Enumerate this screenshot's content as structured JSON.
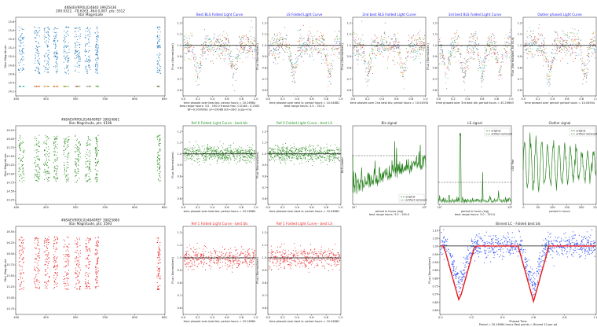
{
  "colors": {
    "blue": "#1f77b4",
    "green": "#2a8a1e",
    "red": "#e8191b",
    "title_blue": "#1a1aff",
    "title_green": "#229922",
    "title_red": "#ee2222",
    "black": "#222222",
    "hline": "#111111",
    "dash": "#333333"
  },
  "chart_data": [
    {
      "id": "lc-row1",
      "type": "scatter",
      "title": "4NS4EVRPOL024840 39925436\n209.9322, -78.6263, 464.0,087, pts: 5312\nStar Magnitude",
      "title_color": "#222222",
      "ylabel": "Star Magnitude",
      "xlabel": "",
      "xticks": [
        "400",
        "450",
        "500",
        "550",
        "600",
        "650"
      ],
      "yticks": [
        "14.2",
        "14.4",
        "14.6",
        "14.8",
        "15.0",
        "15.2",
        "15.4",
        "15.6",
        "15.8"
      ],
      "xlim": [
        395,
        660
      ],
      "ylim": [
        15.85,
        14.15
      ],
      "color": "#1f77b4",
      "clusters": [
        [
          400,
          410
        ],
        [
          428,
          438
        ],
        [
          445,
          455
        ],
        [
          462,
          470
        ],
        [
          480,
          490
        ],
        [
          500,
          510
        ],
        [
          518,
          528
        ],
        [
          536,
          542
        ],
        [
          646,
          652
        ]
      ]
    },
    {
      "id": "lc-row2",
      "type": "scatter",
      "title": "4NS4EVRPOL024840REF 39924861\nStar Magnitude, pts: 6196",
      "title_color": "#222222",
      "ylabel": "Star Magnitude",
      "xlabel": "",
      "xticks": [
        "400",
        "450",
        "500",
        "550",
        "600",
        "650"
      ],
      "yticks": [
        "14.25",
        "14.50",
        "14.75",
        "15.00",
        "15.25",
        "15.50",
        "15.75",
        "16.00",
        "16.25"
      ],
      "xlim": [
        395,
        660
      ],
      "ylim": [
        16.3,
        14.2
      ],
      "color": "#2a8a1e",
      "clusters": [
        [
          400,
          410
        ],
        [
          428,
          438
        ],
        [
          445,
          455
        ],
        [
          462,
          470
        ],
        [
          480,
          490
        ],
        [
          500,
          510
        ],
        [
          518,
          528
        ],
        [
          536,
          542
        ],
        [
          646,
          652
        ]
      ]
    },
    {
      "id": "lc-row3",
      "type": "scatter",
      "title": "4NS4EVRPOL024840REF 39925860\nStar Magnitude, pts: 3593",
      "title_color": "#222222",
      "ylabel": "Star Magnitude",
      "xlabel": "",
      "xticks": [
        "400",
        "450",
        "500",
        "550",
        "600",
        "650"
      ],
      "yticks": [
        "14.75",
        "15.00",
        "15.25",
        "15.50",
        "15.75",
        "16.00",
        "16.25",
        "16.50"
      ],
      "xlim": [
        395,
        660
      ],
      "ylim": [
        16.6,
        14.7
      ],
      "color": "#e8191b",
      "clusters": [
        [
          400,
          410
        ],
        [
          428,
          438
        ],
        [
          445,
          455
        ],
        [
          462,
          470
        ],
        [
          480,
          490
        ],
        [
          500,
          510
        ],
        [
          518,
          528
        ],
        [
          536,
          542
        ],
        [
          646,
          652
        ]
      ]
    },
    {
      "id": "fold-best-bls",
      "type": "scatter",
      "title": "Best BLS Folded Light Curve",
      "title_color": "#1a1aff",
      "xlabel": "time phased over best bls: period hours = 20.16984\nbest range hours: 3.0 - 190.0  transit frac: 0.0148 - 0.2500\nBF=0.0000082 sh=29988 ddr=280: (e)/p=mis",
      "ylabel": "Flux (Normalized)",
      "xticks": [
        "0.0",
        "0.2",
        "0.4",
        "0.6",
        "0.8",
        "1.0"
      ],
      "yticks": [
        "0.6",
        "0.7",
        "0.8",
        "0.9",
        "1.0",
        "1.1",
        "1.2"
      ],
      "xlim": [
        0,
        1
      ],
      "ylim": [
        0.55,
        1.25
      ],
      "hline": 1.0,
      "dips": [
        0.2,
        0.7
      ]
    },
    {
      "id": "fold-ls",
      "type": "scatter",
      "title": "LS Folded Light Curve",
      "title_color": "#1a1aff",
      "xlabel": "time phased over best ls: period hours = 10.04881\nbest range hours: 3.0 - 720.0",
      "ylabel": "Flux (Normalized)",
      "xticks": [
        "0.0",
        "0.2",
        "0.4",
        "0.6",
        "0.8",
        "1.0"
      ],
      "yticks": [
        "0.6",
        "0.7",
        "0.8",
        "0.9",
        "1.0",
        "1.1",
        "1.2"
      ],
      "xlim": [
        0,
        1
      ],
      "ylim": [
        0.55,
        1.25
      ],
      "hline": 1.0,
      "dips": [
        0.35,
        0.85
      ]
    },
    {
      "id": "fold-2nd-bls",
      "type": "scatter",
      "title": "2nd best BLS Folded Light Curve",
      "title_color": "#1a1aff",
      "xlabel": "time phased over 2nd best bls: period hours = 10.04934",
      "ylabel": "Flux (Normalized)",
      "xticks": [
        "0.0",
        "0.2",
        "0.4",
        "0.6",
        "0.8",
        "1.0"
      ],
      "yticks": [
        "0.6",
        "0.7",
        "0.8",
        "0.9",
        "1.0",
        "1.1",
        "1.2"
      ],
      "xlim": [
        0,
        1
      ],
      "ylim": [
        0.55,
        1.25
      ],
      "hline": 1.0,
      "dips": [
        0.2,
        0.7
      ]
    },
    {
      "id": "fold-3rd-bls",
      "type": "scatter",
      "title": "3rd best BLS Folded Light Curve",
      "title_color": "#1a1aff",
      "xlabel": "time phased over 3rd best bls: period hours = 40.19663",
      "ylabel": "Flux (Normalized)",
      "xticks": [
        "0.0",
        "0.2",
        "0.4",
        "0.6",
        "0.8",
        "1.0"
      ],
      "yticks": [
        "0.6",
        "0.7",
        "0.8",
        "0.9",
        "1.0",
        "1.1",
        "1.2"
      ],
      "xlim": [
        0,
        1
      ],
      "ylim": [
        0.55,
        1.25
      ],
      "hline": 1.0,
      "dips": [
        0.1,
        0.35,
        0.6,
        0.85
      ]
    },
    {
      "id": "fold-outlier",
      "type": "scatter",
      "title": "Outlier phased Light Curve",
      "title_color": "#1a1aff",
      "xlabel": "time phased over period: period hours = 10.04944",
      "ylabel": "Flux (Normalized, No Out)",
      "xticks": [
        "0.0",
        "0.2",
        "0.4",
        "0.6",
        "0.8",
        "1.0"
      ],
      "yticks": [
        "0.6",
        "0.7",
        "0.8",
        "0.9",
        "1.0",
        "1.1",
        "1.2"
      ],
      "xlim": [
        0,
        1
      ],
      "ylim": [
        0.55,
        1.25
      ],
      "hline": 1.0,
      "dips": [
        0.35,
        0.85
      ]
    },
    {
      "id": "ref0-bls",
      "type": "scatter",
      "title": "Ref 0 Folded Light Curve - best bls",
      "title_color": "#229922",
      "xlabel": "time phased over best bls: period hours = 20.16984",
      "ylabel": "Flux (Normalized)",
      "xticks": [
        "0.0",
        "0.2",
        "0.4",
        "0.6",
        "0.8",
        "1.0"
      ],
      "yticks": [
        "0.6",
        "0.7",
        "0.8",
        "0.9",
        "1.0",
        "1.1",
        "1.2"
      ],
      "xlim": [
        0,
        1
      ],
      "ylim": [
        0.55,
        1.25
      ],
      "hline": 1.0,
      "dips": []
    },
    {
      "id": "ref0-ls",
      "type": "scatter",
      "title": "Ref 0 Folded Light Curve - best LS",
      "title_color": "#229922",
      "xlabel": "time phased over best ls: period hours = 10.04881",
      "ylabel": "Flux (Normalized)",
      "xticks": [
        "0.0",
        "0.2",
        "0.4",
        "0.6",
        "0.8",
        "1.0"
      ],
      "yticks": [
        "0.6",
        "0.7",
        "0.8",
        "0.9",
        "1.0",
        "1.1",
        "1.2"
      ],
      "xlim": [
        0,
        1
      ],
      "ylim": [
        0.55,
        1.25
      ],
      "hline": 1.0,
      "dips": []
    },
    {
      "id": "bls-signal",
      "type": "line",
      "title": "Bls signal",
      "title_color": "#222222",
      "xlabel": "period in hours (log)\nbest range hours: 3.0 - 190.0",
      "ylabel": "BLS power",
      "xticks": [
        "10¹",
        "10²"
      ],
      "legend": [
        "original",
        "artifact removed"
      ],
      "legend_position": "lower-right"
    },
    {
      "id": "ls-signal",
      "type": "line",
      "title": "LS signal",
      "title_color": "#222222",
      "xlabel": "period in hours (log)\nbest range hours: 3.0 - 720.0",
      "ylabel": "",
      "xticks": [
        "10¹",
        "10²"
      ],
      "legend": [
        "original",
        "artifact removed"
      ],
      "legend_position": "top-right"
    },
    {
      "id": "outlier-signal",
      "type": "line",
      "title": "Outlier signal",
      "title_color": "#222222",
      "xlabel": "period in hours",
      "ylabel": "LS0 Pwr",
      "xticks": [
        "0",
        "50",
        "100",
        "150",
        "200",
        "250"
      ],
      "legend": [
        "original",
        "artifact removed"
      ],
      "legend_position": "top-right"
    },
    {
      "id": "ref1-bls",
      "type": "scatter",
      "title": "Ref 1 Folded Light Curve - best bls",
      "title_color": "#ee2222",
      "xlabel": "time phased over best bls: period hours = 20.16984",
      "ylabel": "Flux (Normalized)",
      "xticks": [
        "0.0",
        "0.2",
        "0.4",
        "0.6",
        "0.8",
        "1.0"
      ],
      "yticks": [
        "0.6",
        "0.7",
        "0.8",
        "0.9",
        "1.0",
        "1.1",
        "1.2"
      ],
      "xlim": [
        0,
        1
      ],
      "ylim": [
        0.55,
        1.25
      ],
      "hline": 1.0,
      "dips": []
    },
    {
      "id": "ref1-ls",
      "type": "scatter",
      "title": "Ref 1 Folded Light Curve - best LS",
      "title_color": "#ee2222",
      "xlabel": "time phased over best ls: period hours = 10.04881",
      "ylabel": "Flux (Normalized)",
      "xticks": [
        "0.0",
        "0.2",
        "0.4",
        "0.6",
        "0.8",
        "1.0"
      ],
      "yticks": [
        "0.6",
        "0.7",
        "0.8",
        "0.9",
        "1.0",
        "1.1",
        "1.2"
      ],
      "xlim": [
        0,
        1
      ],
      "ylim": [
        0.55,
        1.25
      ],
      "hline": 1.0,
      "dips": []
    },
    {
      "id": "binned-lc",
      "type": "scatter",
      "title": "Binned LC - Folded best bls",
      "title_color": "#222222",
      "xlabel": "Phased Time\nPeriod = 20.16984 hours    Real points = Binned 10 per pd",
      "ylabel": "Flux (Normalized)",
      "xticks": [
        "0.0",
        "0.2",
        "0.4",
        "0.6",
        "0.8",
        "1.0"
      ],
      "yticks": [
        "0.60",
        "0.65",
        "0.70",
        "0.75",
        "0.80",
        "0.85",
        "0.90",
        "0.95",
        "1.00",
        "1.05",
        "1.10"
      ],
      "xlim": [
        0,
        1
      ],
      "ylim": [
        0.58,
        1.12
      ],
      "hline": 1.0,
      "dips": [
        0.12,
        0.6
      ]
    }
  ]
}
